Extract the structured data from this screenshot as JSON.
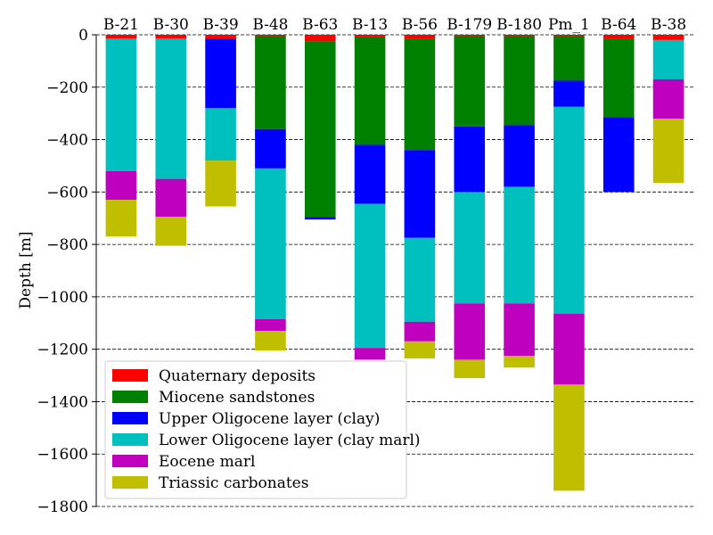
{
  "chart_data": {
    "type": "bar",
    "ylabel": "Depth [m]",
    "ylim": [
      -1800,
      0
    ],
    "yticks": [
      0,
      -200,
      -400,
      -600,
      -800,
      -1000,
      -1200,
      -1400,
      -1600,
      -1800
    ],
    "grid": true,
    "legend_position": "lower-left",
    "categories": [
      "B-21",
      "B-30",
      "B-39",
      "B-48",
      "B-63",
      "B-13",
      "B-56",
      "B-179",
      "B-180",
      "Pm_1",
      "B-64",
      "B-38"
    ],
    "series": [
      {
        "name": "Quaternary deposits",
        "color": "#ff0000",
        "values": [
          -15,
          -15,
          -15,
          -5,
          -25,
          -10,
          -15,
          -5,
          -5,
          -5,
          -15,
          -20
        ]
      },
      {
        "name": "Miocene sandstones",
        "color": "#008000",
        "values": [
          0,
          0,
          0,
          -355,
          -670,
          -410,
          -425,
          -345,
          -340,
          -170,
          -300,
          0
        ]
      },
      {
        "name": "Upper Oligocene layer (clay)",
        "color": "#0000ff",
        "values": [
          0,
          0,
          -265,
          -150,
          -10,
          -225,
          -335,
          -250,
          -235,
          -100,
          -285,
          0
        ]
      },
      {
        "name": "Lower Oligocene layer (clay marl)",
        "color": "#00bfbf",
        "values": [
          -505,
          -535,
          -200,
          -575,
          0,
          -550,
          -320,
          -425,
          -445,
          -790,
          0,
          -150
        ]
      },
      {
        "name": "Eocene marl",
        "color": "#bf00bf",
        "values": [
          -110,
          -145,
          0,
          -45,
          0,
          -45,
          -75,
          -215,
          -200,
          -270,
          0,
          -150
        ]
      },
      {
        "name": "Triassic carbonates",
        "color": "#bfbf00",
        "values": [
          -140,
          -110,
          -175,
          -75,
          0,
          0,
          -65,
          -70,
          -45,
          -405,
          0,
          -245
        ]
      }
    ]
  }
}
